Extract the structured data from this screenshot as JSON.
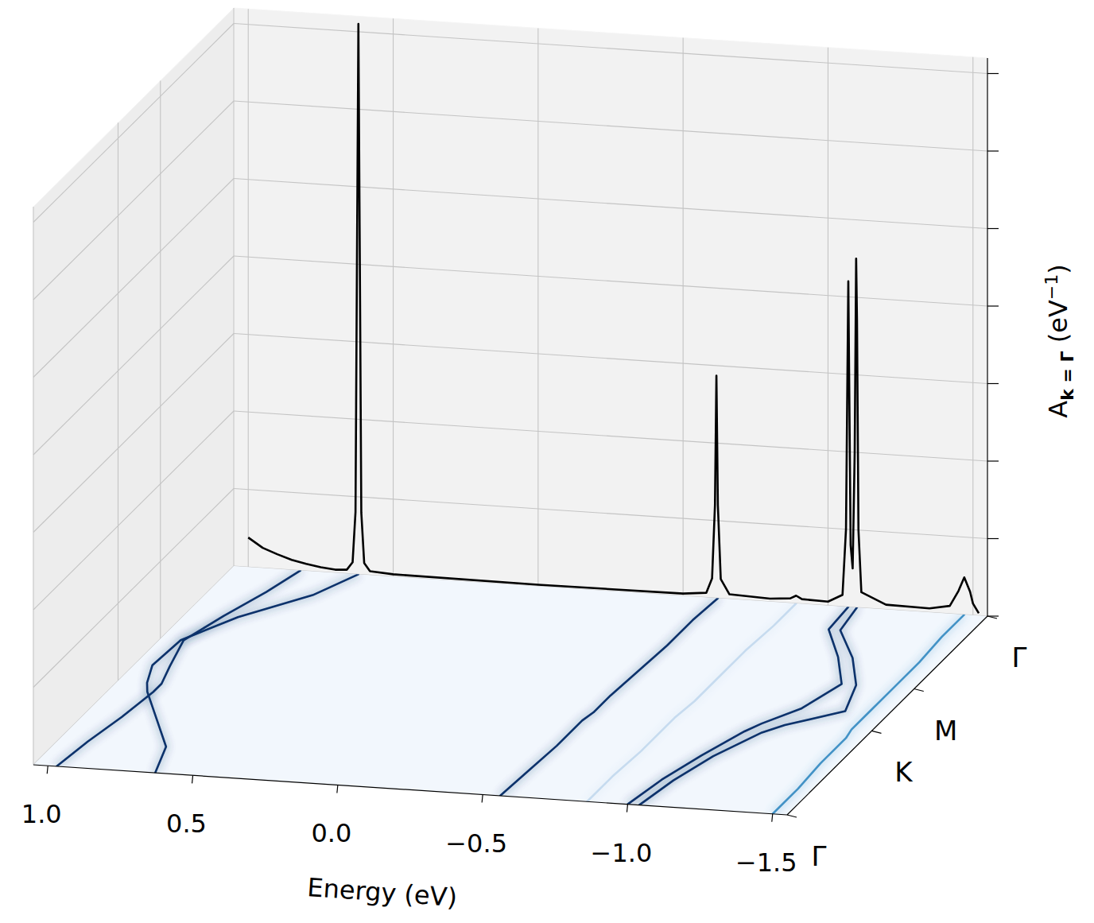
{
  "chart_data": {
    "type": "line",
    "x_label": "Energy (eV)",
    "z_label": {
      "symbol": "A",
      "subscript": "k = Γ",
      "units": " (eV",
      "exponent": "−1",
      "close": ")"
    },
    "xlim": [
      1.05,
      -1.55
    ],
    "xticks": [
      {
        "value": 1.0,
        "label": "1.0"
      },
      {
        "value": 0.5,
        "label": "0.5"
      },
      {
        "value": 0.0,
        "label": "0.0"
      },
      {
        "value": -0.5,
        "label": "−0.5"
      },
      {
        "value": -1.0,
        "label": "−1.0"
      },
      {
        "value": -1.5,
        "label": "−1.5"
      }
    ],
    "klim": [
      0,
      2.366
    ],
    "kticks": [
      {
        "value": 0,
        "label": "Γ"
      },
      {
        "value": 1.0,
        "label": "K"
      },
      {
        "value": 1.5,
        "label": "M"
      },
      {
        "value": 2.366,
        "label": "Γ"
      }
    ],
    "zlim": [
      0,
      72
    ],
    "zticks": [
      0,
      10,
      20,
      30,
      40,
      50,
      60,
      70
    ],
    "tick_labels": "x",
    "grid": true,
    "spectral": {
      "color": "#000000",
      "x": [
        1.0,
        0.95,
        0.9,
        0.85,
        0.8,
        0.75,
        0.7,
        0.66,
        0.64,
        0.63,
        0.625,
        0.62,
        0.615,
        0.61,
        0.6,
        0.58,
        0.5,
        0.0,
        -0.5,
        -0.58,
        -0.6,
        -0.61,
        -0.615,
        -0.62,
        -0.63,
        -0.66,
        -0.8,
        -0.87,
        -0.89,
        -0.91,
        -1.0,
        -1.05,
        -1.062,
        -1.07,
        -1.078,
        -1.085,
        -1.092,
        -1.097,
        -1.1,
        -1.105,
        -1.115,
        -1.2,
        -1.35,
        -1.42,
        -1.45,
        -1.47,
        -1.49,
        -1.5,
        -1.52
      ],
      "values": [
        3.8,
        2.6,
        1.9,
        1.3,
        0.9,
        0.6,
        0.4,
        0.5,
        1.5,
        8,
        40,
        71,
        40,
        8,
        1.5,
        0.5,
        0.3,
        0.2,
        0.3,
        0.6,
        2.5,
        12,
        28.7,
        12,
        2.5,
        0.6,
        0.4,
        0.6,
        1.0,
        0.6,
        0.5,
        1.5,
        10,
        42,
        8,
        5,
        20,
        45,
        37,
        10,
        2,
        0.6,
        0.5,
        1.0,
        3,
        4.8,
        3,
        1.5,
        0.3
      ]
    },
    "bands": [
      {
        "color": "#08306b",
        "k": [
          0,
          0.3,
          0.6,
          0.9,
          1.0,
          1.2,
          1.5,
          1.8,
          2.1,
          2.366
        ],
        "energy": [
          0.63,
          0.68,
          0.8,
          0.92,
          0.95,
          0.99,
          0.98,
          0.87,
          0.7,
          0.62
        ]
      },
      {
        "color": "#08306b",
        "k": [
          0,
          0.3,
          0.6,
          0.9,
          1.0,
          1.2,
          1.5,
          1.8,
          2.1,
          2.366
        ],
        "energy": [
          0.97,
          0.95,
          0.92,
          0.9,
          0.9,
          0.93,
          0.97,
          0.92,
          0.86,
          0.82
        ]
      },
      {
        "color": "#08306b",
        "k": [
          0,
          0.3,
          0.6,
          0.9,
          1.0,
          1.2,
          1.5,
          1.8,
          2.1,
          2.366
        ],
        "energy": [
          -0.56,
          -0.57,
          -0.58,
          -0.58,
          -0.59,
          -0.59,
          -0.6,
          -0.61,
          -0.61,
          -0.62
        ]
      },
      {
        "color": "#c6dbef",
        "k": [
          0,
          0.3,
          0.6,
          0.9,
          1.0,
          1.2,
          1.5,
          1.8,
          2.1,
          2.366
        ],
        "energy": [
          -0.86,
          -0.86,
          -0.87,
          -0.87,
          -0.87,
          -0.88,
          -0.88,
          -0.88,
          -0.89,
          -0.89
        ]
      },
      {
        "color": "#08306b",
        "k": [
          0,
          0.3,
          0.6,
          0.9,
          1.0,
          1.2,
          1.5,
          1.8,
          2.1,
          2.366
        ],
        "energy": [
          -1.0,
          -1.03,
          -1.08,
          -1.14,
          -1.17,
          -1.25,
          -1.3,
          -1.2,
          -1.08,
          -1.07
        ]
      },
      {
        "color": "#08306b",
        "k": [
          0,
          0.3,
          0.6,
          0.9,
          1.0,
          1.2,
          1.5,
          1.8,
          2.1,
          2.366
        ],
        "energy": [
          -1.04,
          -1.07,
          -1.12,
          -1.2,
          -1.25,
          -1.4,
          -1.35,
          -1.25,
          -1.12,
          -1.1
        ]
      },
      {
        "color": "#4292c6",
        "k": [
          0,
          0.3,
          0.6,
          0.9,
          1.0,
          1.2,
          1.5,
          1.8,
          2.1,
          2.366
        ],
        "energy": [
          -1.5,
          -1.5,
          -1.49,
          -1.49,
          -1.48,
          -1.48,
          -1.48,
          -1.48,
          -1.47,
          -1.47
        ]
      }
    ]
  }
}
